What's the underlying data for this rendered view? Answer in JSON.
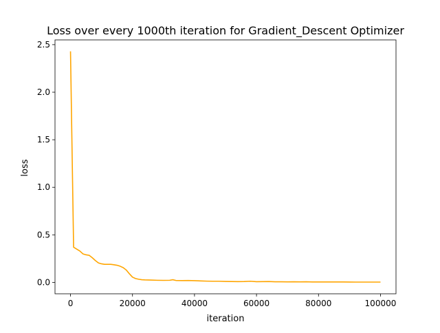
{
  "chart_data": {
    "type": "line",
    "title": "Loss over every 1000th iteration for Gradient_Descent Optimizer",
    "xlabel": "iteration",
    "ylabel": "loss",
    "xlim": [
      -5000,
      105000
    ],
    "ylim": [
      -0.12,
      2.55
    ],
    "xticks": [
      0,
      20000,
      40000,
      60000,
      80000,
      100000
    ],
    "xtick_labels": [
      "0",
      "20000",
      "40000",
      "60000",
      "80000",
      "100000"
    ],
    "yticks": [
      0.0,
      0.5,
      1.0,
      1.5,
      2.0,
      2.5
    ],
    "ytick_labels": [
      "0.0",
      "0.5",
      "1.0",
      "1.5",
      "2.0",
      "2.5"
    ],
    "grid": false,
    "series": [
      {
        "color": "#ffa500",
        "x": [
          0,
          1000,
          2000,
          3000,
          4000,
          5000,
          6000,
          7000,
          8000,
          9000,
          10000,
          11000,
          12000,
          13000,
          14000,
          15000,
          16000,
          17000,
          18000,
          19000,
          20000,
          21000,
          22000,
          23000,
          24000,
          25000,
          26000,
          28000,
          30000,
          32000,
          33000,
          34000,
          36000,
          38000,
          40000,
          42000,
          44000,
          46000,
          48000,
          50000,
          52000,
          54000,
          56000,
          58000,
          60000,
          62000,
          64000,
          66000,
          68000,
          70000,
          72000,
          74000,
          76000,
          78000,
          80000,
          84000,
          88000,
          92000,
          96000,
          100000
        ],
        "y": [
          2.43,
          0.37,
          0.35,
          0.33,
          0.3,
          0.29,
          0.285,
          0.26,
          0.23,
          0.205,
          0.195,
          0.19,
          0.19,
          0.19,
          0.185,
          0.18,
          0.17,
          0.155,
          0.13,
          0.09,
          0.055,
          0.04,
          0.033,
          0.028,
          0.026,
          0.025,
          0.024,
          0.022,
          0.021,
          0.022,
          0.028,
          0.02,
          0.019,
          0.02,
          0.018,
          0.015,
          0.013,
          0.012,
          0.012,
          0.01,
          0.009,
          0.008,
          0.009,
          0.012,
          0.007,
          0.008,
          0.009,
          0.006,
          0.006,
          0.005,
          0.006,
          0.005,
          0.006,
          0.004,
          0.004,
          0.004,
          0.004,
          0.003,
          0.003,
          0.003
        ]
      }
    ]
  }
}
